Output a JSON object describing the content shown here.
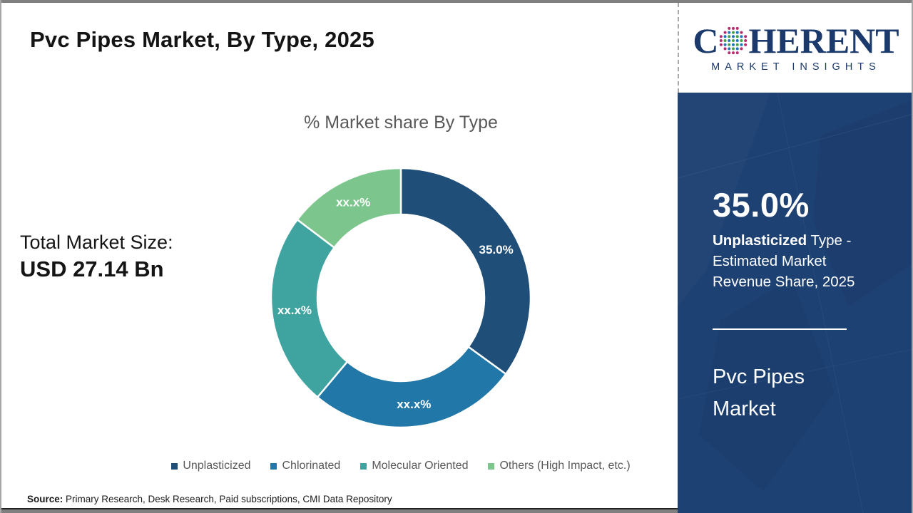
{
  "header": {
    "title": "Pvc Pipes Market, By Type, 2025"
  },
  "logo": {
    "brand_prefix": "C",
    "brand_suffix": "HERENT",
    "subtitle": "MARKET INSIGHTS",
    "brand_color": "#1b3a6b",
    "globe_colors": {
      "ring": "#b52c6f",
      "green": "#43a047",
      "blue": "#1e74bd"
    }
  },
  "total": {
    "label": "Total Market Size:",
    "value": "USD 27.14 Bn"
  },
  "chart_data": {
    "type": "pie",
    "donut": true,
    "title": "% Market share By Type",
    "start_angle_deg": 0,
    "direction": "clockwise",
    "segments": [
      {
        "label": "Unplasticized",
        "value": 35.0,
        "value_display": "35.0%",
        "color": "#1f4e79"
      },
      {
        "label": "Chlorinated",
        "value": 26.1,
        "value_display": "xx.x%",
        "color": "#2077a8"
      },
      {
        "label": "Molecular Oriented",
        "value": 24.2,
        "value_display": "xx.x%",
        "color": "#3fa3a0"
      },
      {
        "label": "Others (High Impact, etc.)",
        "value": 14.7,
        "value_display": "xx.x%",
        "color": "#7cc68e"
      }
    ],
    "legend_position": "bottom"
  },
  "sidebar": {
    "background": "#1e4173",
    "stat_value": "35.0%",
    "stat_term": "Unplasticized",
    "stat_desc_rest": " Type - Estimated Market Revenue Share, 2025",
    "panel_title": "Pvc Pipes Market"
  },
  "source": {
    "label": "Source:",
    "text": " Primary Research, Desk Research, Paid subscriptions, CMI Data Repository"
  }
}
